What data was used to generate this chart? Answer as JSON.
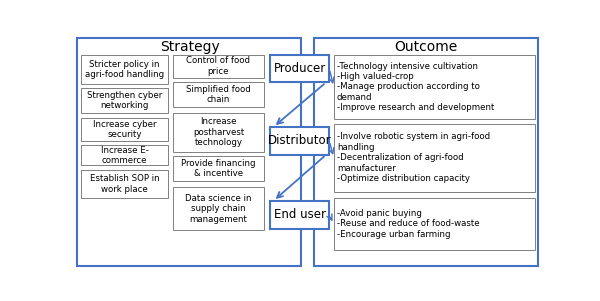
{
  "strategy_title": "Strategy",
  "outcome_title": "Outcome",
  "left_boxes": [
    "Stricter policy in\nagri-food handling",
    "Strengthen cyber\nnetworking",
    "Increase cyber\nsecurity",
    "Increase E-\ncommerce",
    "Establish SOP in\nwork place"
  ],
  "middle_boxes": [
    "Control of food\nprice",
    "Simplified food\nchain",
    "Increase\npostharvest\ntechnology",
    "Provide financing\n& incentive",
    "Data science in\nsupply chain\nmanagement"
  ],
  "player_boxes": [
    "Producer",
    "Distributor",
    "End user"
  ],
  "outcome_boxes": [
    "-Technology intensive cultivation\n-High valued-crop\n-Manage production according to\ndemand\n-Improve research and development",
    "-Involve robotic system in agri-food\nhandling\n-Decentralization of agri-food\nmanufacturer\n-Optimize distribution capacity",
    "-Avoid panic buying\n-Reuse and reduce of food-waste\n-Encourage urban farming"
  ],
  "border_color": "#4472C4",
  "box_edge_color": "#808080",
  "arrow_color": "#4472C4",
  "bg_color": "white",
  "title_fontsize": 10,
  "label_fontsize": 6.2,
  "player_fontsize": 8.5
}
